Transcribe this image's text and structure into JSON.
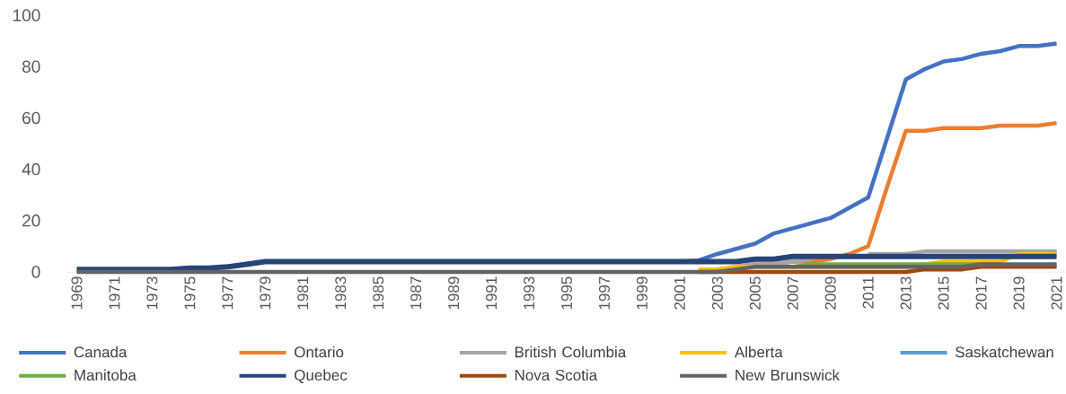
{
  "chart_data": {
    "type": "line",
    "categories": [
      "1969",
      null,
      "1971",
      null,
      "1973",
      null,
      "1975",
      null,
      "1977",
      null,
      "1979",
      null,
      "1981",
      null,
      "1983",
      null,
      "1985",
      null,
      "1987",
      null,
      "1989",
      null,
      "1991",
      null,
      "1993",
      null,
      "1995",
      null,
      "1997",
      null,
      "1999",
      null,
      "2001",
      null,
      "2003",
      null,
      "2005",
      null,
      "2007",
      null,
      "2009",
      null,
      "2011",
      null,
      "2013",
      null,
      "2015",
      null,
      "2017",
      null,
      "2019",
      null,
      "2021"
    ],
    "series": [
      {
        "name": "Canada",
        "color": "#4472c4",
        "values": [
          null,
          null,
          null,
          null,
          null,
          null,
          null,
          null,
          null,
          null,
          null,
          null,
          null,
          null,
          null,
          null,
          null,
          null,
          null,
          null,
          null,
          null,
          null,
          null,
          null,
          null,
          null,
          null,
          null,
          null,
          null,
          null,
          4,
          4.5,
          7,
          9,
          11,
          15,
          17,
          19,
          21,
          25,
          29,
          52,
          75,
          79,
          82,
          83,
          85,
          86,
          88,
          88,
          89
        ]
      },
      {
        "name": "Ontario",
        "color": "#ed7d31",
        "values": [
          null,
          null,
          null,
          null,
          null,
          null,
          null,
          null,
          null,
          null,
          null,
          null,
          null,
          null,
          null,
          null,
          null,
          null,
          null,
          null,
          null,
          null,
          null,
          null,
          null,
          null,
          null,
          null,
          null,
          null,
          null,
          null,
          null,
          0.5,
          1,
          2,
          3,
          3,
          4,
          4,
          5,
          7,
          10,
          33,
          55,
          55,
          56,
          56,
          56,
          57,
          57,
          57,
          58
        ]
      },
      {
        "name": "British Columbia",
        "color": "#a5a5a5",
        "values": [
          null,
          null,
          null,
          null,
          null,
          null,
          null,
          null,
          null,
          null,
          null,
          null,
          null,
          null,
          null,
          null,
          null,
          null,
          null,
          null,
          null,
          null,
          null,
          null,
          null,
          null,
          null,
          null,
          null,
          null,
          null,
          null,
          null,
          null,
          0,
          2,
          3,
          3,
          4,
          5,
          null,
          null,
          7,
          7,
          7,
          8,
          8,
          8,
          8,
          8,
          8,
          8,
          8
        ]
      },
      {
        "name": "Alberta",
        "color": "#ffc000",
        "values": [
          null,
          null,
          null,
          null,
          null,
          null,
          null,
          null,
          null,
          null,
          null,
          null,
          null,
          null,
          null,
          null,
          null,
          null,
          null,
          null,
          null,
          null,
          null,
          null,
          null,
          null,
          null,
          null,
          null,
          null,
          null,
          null,
          null,
          1,
          1,
          2,
          2,
          2,
          2,
          2,
          2,
          2,
          2,
          2,
          2,
          3,
          4,
          4,
          4,
          4,
          7,
          7,
          7
        ]
      },
      {
        "name": "Saskatchewan",
        "color": "#5b9bd5",
        "values": [
          null,
          null,
          null,
          null,
          null,
          null,
          null,
          null,
          null,
          null,
          null,
          null,
          null,
          null,
          null,
          null,
          null,
          null,
          null,
          null,
          null,
          null,
          null,
          null,
          null,
          null,
          null,
          null,
          null,
          null,
          null,
          null,
          null,
          null,
          null,
          null,
          null,
          null,
          null,
          null,
          null,
          null,
          null,
          null,
          null,
          null,
          null,
          null,
          null,
          null,
          null,
          null,
          null
        ]
      },
      {
        "name": "Manitoba",
        "color": "#70ad47",
        "values": [
          null,
          null,
          null,
          null,
          null,
          null,
          null,
          null,
          null,
          null,
          null,
          null,
          null,
          null,
          null,
          null,
          null,
          null,
          null,
          null,
          null,
          null,
          null,
          null,
          null,
          null,
          null,
          null,
          null,
          null,
          null,
          null,
          null,
          null,
          null,
          null,
          null,
          null,
          2,
          3,
          3,
          3,
          3,
          3,
          3,
          3,
          3,
          3,
          3,
          3,
          null,
          null,
          null
        ]
      },
      {
        "name": "Quebec",
        "color": "#264478",
        "values": [
          1,
          1,
          1,
          1,
          1,
          1,
          1.5,
          1.5,
          2,
          3,
          4,
          4,
          4,
          4,
          4,
          4,
          4,
          4,
          4,
          4,
          4,
          4,
          4,
          4,
          4,
          4,
          4,
          4,
          4,
          4,
          4,
          4,
          4,
          4,
          4,
          4,
          5,
          5,
          6,
          6,
          6,
          6,
          6,
          6,
          6,
          6,
          6,
          6,
          6,
          6,
          6,
          6,
          6
        ]
      },
      {
        "name": "Nova Scotia",
        "color": "#9e480e",
        "values": [
          null,
          null,
          null,
          null,
          null,
          null,
          null,
          null,
          null,
          null,
          null,
          null,
          null,
          null,
          null,
          null,
          null,
          null,
          null,
          null,
          null,
          null,
          null,
          null,
          null,
          null,
          null,
          null,
          null,
          null,
          null,
          null,
          null,
          0,
          0,
          0,
          0,
          0,
          0,
          0,
          0,
          0,
          0,
          0,
          0,
          1,
          1,
          1,
          2,
          2,
          2,
          2,
          2
        ]
      },
      {
        "name": "New Brunswick",
        "color": "#636363",
        "values": [
          0,
          0,
          0,
          0,
          0,
          0,
          0,
          0,
          0,
          0,
          0,
          0,
          0,
          0,
          0,
          0,
          0,
          0,
          0,
          0,
          0,
          0,
          0,
          0,
          0,
          0,
          0,
          0,
          0,
          0,
          0,
          0,
          0,
          0,
          0,
          1,
          2,
          2,
          2,
          2,
          2,
          2,
          2,
          2,
          2,
          2,
          2,
          2,
          3,
          3,
          3,
          3,
          3
        ]
      }
    ],
    "ylim": [
      0,
      100
    ],
    "yticks": [
      0,
      20,
      40,
      60,
      80,
      100
    ],
    "legend": "bottom",
    "marker": "none",
    "line_style": "solid"
  }
}
